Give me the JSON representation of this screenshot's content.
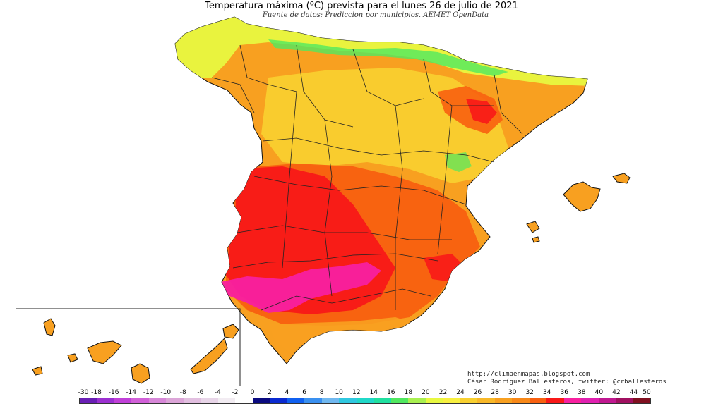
{
  "title": "Temperatura máxima (ºC) prevista para el lunes 26 de julio de 2021",
  "subtitle": "Fuente de datos: Prediccion por municipios. AEMET OpenData",
  "credits": {
    "url": "http://climaenmapas.blogspot.com",
    "author": "César Rodríguez Ballesteros, twitter: @crballesteros"
  },
  "legend": {
    "labels": [
      "-30",
      "-18",
      "-16",
      "-14",
      "-12",
      "-10",
      "-8",
      "-6",
      "-4",
      "-2",
      "0",
      "2",
      "4",
      "6",
      "8",
      "10",
      "12",
      "14",
      "16",
      "18",
      "20",
      "22",
      "24",
      "26",
      "28",
      "30",
      "32",
      "34",
      "36",
      "38",
      "40",
      "42",
      "44",
      "50"
    ],
    "colors": [
      "#6a1fb5",
      "#9b30d0",
      "#c040d8",
      "#d160d8",
      "#d787d8",
      "#dca5d8",
      "#e2bfe0",
      "#e8d5e8",
      "#f2ecf2",
      "#ffffff",
      "#0a0a80",
      "#0a2ad0",
      "#1060f0",
      "#3a90f0",
      "#70b8f0",
      "#30c8e0",
      "#20d8c8",
      "#20e0a0",
      "#50e860",
      "#a8f050",
      "#e8f840",
      "#f8f040",
      "#f8d030",
      "#f8b828",
      "#f8a020",
      "#f88818",
      "#f86010",
      "#f81818",
      "#f820a0",
      "#e020b0",
      "#c01890",
      "#a01060",
      "#801020"
    ]
  },
  "map": {
    "region": "Península Ibérica, Baleares y Canarias",
    "colors": {
      "warm": "#f8a020",
      "hot": "#f86010",
      "very_hot": "#f81818",
      "extreme": "#f820a0",
      "mild": "#f8d030",
      "cool": "#e8f840",
      "green": "#50e860",
      "border": "#222222"
    }
  }
}
